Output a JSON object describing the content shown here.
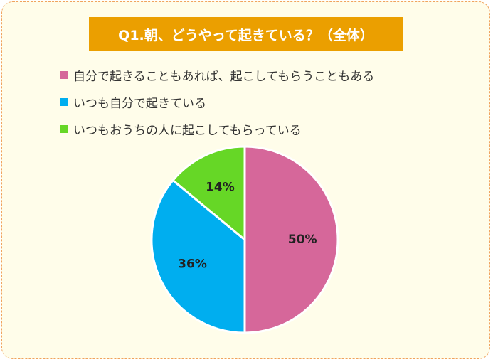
{
  "chart_data": {
    "type": "pie",
    "title": "Q1.朝、どうやって起きている？（全体）",
    "slices": [
      {
        "label": "自分で起きることもあれば、起こしてもらうこともある",
        "value": 50,
        "value_label": "50%",
        "color": "#d6679a"
      },
      {
        "label": "いつも自分で起きている",
        "value": 36,
        "value_label": "36%",
        "color": "#00aeef"
      },
      {
        "label": "いつもおうちの人に起こしてもらっている",
        "value": 14,
        "value_label": "14%",
        "color": "#66d726"
      }
    ],
    "legend_position": "top-left",
    "start_angle": "12 o'clock",
    "direction": "clockwise"
  }
}
